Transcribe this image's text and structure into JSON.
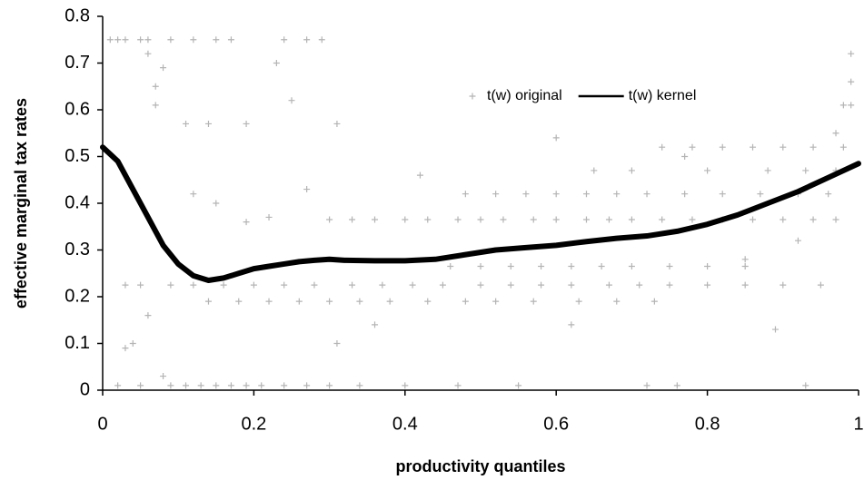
{
  "chart_data": {
    "type": "scatter",
    "x_label": "productivity quantiles",
    "y_label": "effective marginal tax rates",
    "xlim": [
      0,
      1
    ],
    "xticks": [
      0,
      0.2,
      0.4,
      0.6,
      0.8,
      1
    ],
    "ylim": [
      0,
      0.8
    ],
    "yticks": [
      0,
      0.1,
      0.2,
      0.3,
      0.4,
      0.5,
      0.6,
      0.7,
      0.8
    ],
    "grid": false,
    "legend": "upper center",
    "series": [
      {
        "name": "t(w) original",
        "color": "#b4b4b4",
        "style": "markers",
        "x": [
          0.01,
          0.02,
          0.03,
          0.05,
          0.06,
          0.09,
          0.12,
          0.15,
          0.17,
          0.24,
          0.27,
          0.29,
          0.06,
          0.07,
          0.08,
          0.11,
          0.14,
          0.19,
          0.23,
          0.25,
          0.31,
          0.07,
          0.03,
          0.05,
          0.09,
          0.12,
          0.16,
          0.2,
          0.24,
          0.28,
          0.33,
          0.37,
          0.41,
          0.45,
          0.5,
          0.54,
          0.58,
          0.62,
          0.67,
          0.71,
          0.75,
          0.8,
          0.85,
          0.9,
          0.95,
          0.02,
          0.05,
          0.09,
          0.11,
          0.13,
          0.15,
          0.17,
          0.19,
          0.21,
          0.24,
          0.27,
          0.3,
          0.34,
          0.4,
          0.47,
          0.55,
          0.72,
          0.76,
          0.93,
          0.3,
          0.33,
          0.36,
          0.4,
          0.43,
          0.47,
          0.5,
          0.53,
          0.57,
          0.6,
          0.64,
          0.67,
          0.7,
          0.74,
          0.78,
          0.82,
          0.86,
          0.9,
          0.94,
          0.97,
          0.14,
          0.18,
          0.22,
          0.26,
          0.3,
          0.34,
          0.38,
          0.43,
          0.48,
          0.52,
          0.57,
          0.63,
          0.68,
          0.73,
          0.46,
          0.5,
          0.54,
          0.58,
          0.62,
          0.66,
          0.7,
          0.75,
          0.8,
          0.85,
          0.48,
          0.52,
          0.56,
          0.6,
          0.64,
          0.68,
          0.72,
          0.77,
          0.82,
          0.87,
          0.92,
          0.96,
          0.74,
          0.78,
          0.82,
          0.86,
          0.9,
          0.94,
          0.98,
          0.65,
          0.7,
          0.8,
          0.88,
          0.93,
          0.97,
          0.04,
          0.03,
          0.06,
          0.12,
          0.15,
          0.19,
          0.22,
          0.27,
          0.31,
          0.36,
          0.42,
          0.6,
          0.77,
          0.89,
          0.99,
          0.99,
          0.98,
          0.97,
          0.99,
          0.92,
          0.85,
          0.08,
          0.62
        ],
        "values": [
          0.75,
          0.75,
          0.75,
          0.75,
          0.75,
          0.75,
          0.75,
          0.75,
          0.75,
          0.75,
          0.75,
          0.75,
          0.72,
          0.65,
          0.69,
          0.57,
          0.57,
          0.57,
          0.7,
          0.62,
          0.57,
          0.61,
          0.225,
          0.225,
          0.225,
          0.225,
          0.225,
          0.225,
          0.225,
          0.225,
          0.225,
          0.225,
          0.225,
          0.225,
          0.225,
          0.225,
          0.225,
          0.225,
          0.225,
          0.225,
          0.225,
          0.225,
          0.225,
          0.225,
          0.225,
          0.01,
          0.01,
          0.01,
          0.01,
          0.01,
          0.01,
          0.01,
          0.01,
          0.01,
          0.01,
          0.01,
          0.01,
          0.01,
          0.01,
          0.01,
          0.01,
          0.01,
          0.01,
          0.01,
          0.365,
          0.365,
          0.365,
          0.365,
          0.365,
          0.365,
          0.365,
          0.365,
          0.365,
          0.365,
          0.365,
          0.365,
          0.365,
          0.365,
          0.365,
          0.365,
          0.365,
          0.365,
          0.365,
          0.365,
          0.19,
          0.19,
          0.19,
          0.19,
          0.19,
          0.19,
          0.19,
          0.19,
          0.19,
          0.19,
          0.19,
          0.19,
          0.19,
          0.19,
          0.265,
          0.265,
          0.265,
          0.265,
          0.265,
          0.265,
          0.265,
          0.265,
          0.265,
          0.265,
          0.42,
          0.42,
          0.42,
          0.42,
          0.42,
          0.42,
          0.42,
          0.42,
          0.42,
          0.42,
          0.42,
          0.42,
          0.52,
          0.52,
          0.52,
          0.52,
          0.52,
          0.52,
          0.52,
          0.47,
          0.47,
          0.47,
          0.47,
          0.47,
          0.47,
          0.1,
          0.09,
          0.16,
          0.42,
          0.4,
          0.36,
          0.37,
          0.43,
          0.1,
          0.14,
          0.46,
          0.54,
          0.5,
          0.13,
          0.72,
          0.61,
          0.61,
          0.55,
          0.66,
          0.32,
          0.28,
          0.03,
          0.14
        ]
      },
      {
        "name": "t(w) kernel",
        "color": "#000000",
        "style": "line",
        "x": [
          0,
          0.02,
          0.04,
          0.06,
          0.08,
          0.1,
          0.12,
          0.14,
          0.16,
          0.18,
          0.2,
          0.22,
          0.24,
          0.26,
          0.28,
          0.3,
          0.32,
          0.36,
          0.4,
          0.44,
          0.48,
          0.52,
          0.56,
          0.6,
          0.64,
          0.68,
          0.72,
          0.76,
          0.8,
          0.84,
          0.88,
          0.92,
          0.96,
          1
        ],
        "values": [
          0.52,
          0.49,
          0.43,
          0.37,
          0.31,
          0.27,
          0.245,
          0.235,
          0.24,
          0.25,
          0.26,
          0.265,
          0.27,
          0.275,
          0.278,
          0.28,
          0.278,
          0.277,
          0.277,
          0.28,
          0.29,
          0.3,
          0.305,
          0.31,
          0.318,
          0.325,
          0.33,
          0.34,
          0.355,
          0.375,
          0.4,
          0.425,
          0.455,
          0.485
        ]
      }
    ]
  }
}
